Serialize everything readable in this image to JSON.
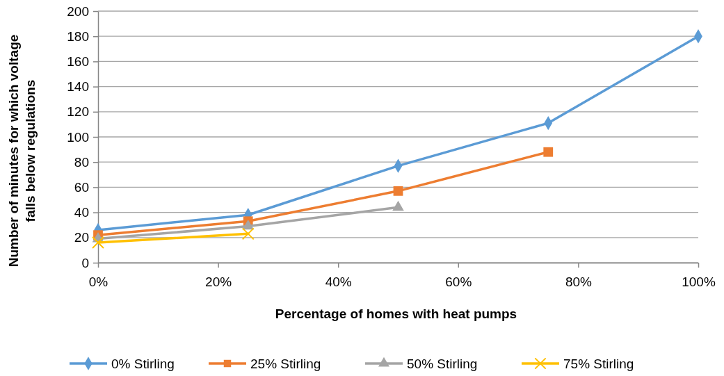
{
  "chart_data": {
    "type": "line",
    "xlabel": "Percentage of homes with heat pumps",
    "ylabel": "Number of minutes for which voltage falls below regulations",
    "x": [
      0,
      25,
      50,
      75,
      100
    ],
    "series": [
      {
        "name": "0% Stirling",
        "color": "#5b9bd5",
        "marker": "diamond",
        "values": [
          26,
          38,
          77,
          111,
          180
        ]
      },
      {
        "name": "25% Stirling",
        "color": "#ed7d31",
        "marker": "square",
        "values": [
          22,
          33,
          57,
          88,
          null
        ]
      },
      {
        "name": "50% Stirling",
        "color": "#a5a5a5",
        "marker": "triangle",
        "values": [
          19,
          29,
          44,
          null,
          null
        ]
      },
      {
        "name": "75% Stirling",
        "color": "#ffc000",
        "marker": "cross",
        "values": [
          16,
          23,
          null,
          null,
          null
        ]
      }
    ],
    "xlim": [
      0,
      100
    ],
    "xticks": [
      {
        "value": 0,
        "label": "0%"
      },
      {
        "value": 20,
        "label": "20%"
      },
      {
        "value": 40,
        "label": "40%"
      },
      {
        "value": 60,
        "label": "60%"
      },
      {
        "value": 80,
        "label": "80%"
      },
      {
        "value": 100,
        "label": "100%"
      }
    ],
    "ylim": [
      0,
      200
    ],
    "yticks": [
      0,
      20,
      40,
      60,
      80,
      100,
      120,
      140,
      160,
      180,
      200
    ],
    "grid": "y",
    "legend": "bottom",
    "line_style": "solid"
  }
}
